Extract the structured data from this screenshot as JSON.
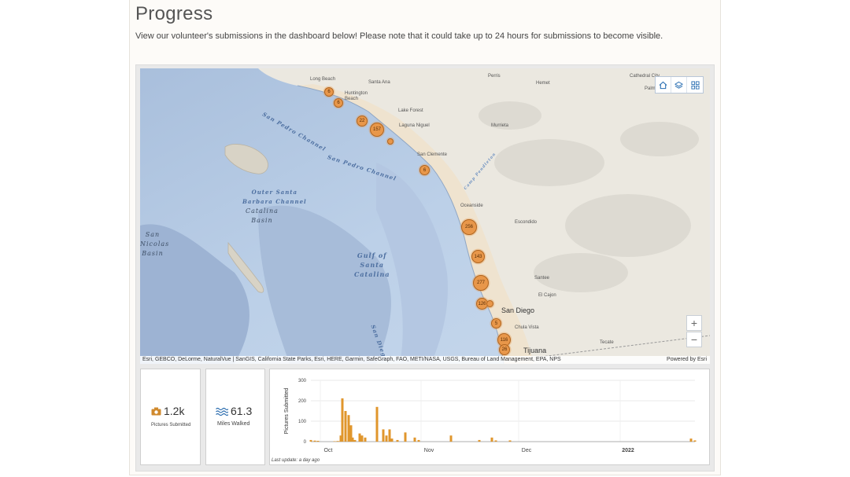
{
  "page": {
    "title": "Progress",
    "intro": "View our volunteer's submissions in the dashboard below! Please note that it could take up to 24 hours for submissions to become visible."
  },
  "map": {
    "places": [
      {
        "name": "Long Beach"
      },
      {
        "name": "Santa Ana"
      },
      {
        "name": "Perris"
      },
      {
        "name": "Hemet"
      },
      {
        "name": "Cathedral City"
      },
      {
        "name": "Palm"
      },
      {
        "name": "Huntington Beach"
      },
      {
        "name": "Lake Forest"
      },
      {
        "name": "Laguna Niguel"
      },
      {
        "name": "Murrieta"
      },
      {
        "name": "San Clemente"
      },
      {
        "name": "Oceanside"
      },
      {
        "name": "Escondido"
      },
      {
        "name": "Santee"
      },
      {
        "name": "El Cajon"
      },
      {
        "name": "Chula Vista"
      }
    ],
    "big_places": {
      "san_diego": "San Diego",
      "tijuana": "Tijuana",
      "tecate": "Tecate"
    },
    "water_labels": {
      "san_pedro_channel_1": "San Pedro Channel",
      "san_pedro_channel_2": "San Pedro Channel",
      "san_diego_trough": "San Diego Trough",
      "camp_pendleton": "Camp Pendleton",
      "outer_santa_barbara_1": "Outer Santa",
      "outer_santa_barbara_2": "Barbara Channel",
      "catalina_basin_1": "Catalina",
      "catalina_basin_2": "Basin",
      "san_nicolas_1": "San",
      "san_nicolas_2": "Nicolas",
      "san_nicolas_3": "Basin",
      "gulf_1": "Gulf of",
      "gulf_2": "Santa",
      "gulf_3": "Catalina"
    },
    "clusters": [
      {
        "label": "6"
      },
      {
        "label": "6"
      },
      {
        "label": "22"
      },
      {
        "label": "157"
      },
      {
        "label": ""
      },
      {
        "label": "6"
      },
      {
        "label": "256"
      },
      {
        "label": "143"
      },
      {
        "label": "277"
      },
      {
        "label": "126"
      },
      {
        "label": ""
      },
      {
        "label": "5"
      },
      {
        "label": "116"
      },
      {
        "label": "26"
      }
    ],
    "tools": {
      "home_icon": "home-icon",
      "layers_icon": "layers-icon",
      "basemap_icon": "basemap-gallery-icon"
    },
    "zoom": {
      "in": "+",
      "out": "−"
    },
    "attribution": "Esri, GEBCO, DeLorme, NaturalVue | SanGIS, California State Parks, Esri, HERE, Garmin, SafeGraph, FAO, METI/NASA, USGS, Bureau of Land Management, EPA, NPS",
    "powered_by": "Powered by Esri"
  },
  "kpis": {
    "pictures": {
      "value": "1.2k",
      "caption": "Pictures Submitted",
      "icon": "camera-icon",
      "color": "#d08a2e"
    },
    "miles": {
      "value": "61.3",
      "caption": "Miles Walked",
      "icon": "waves-icon",
      "color": "#2f6fb0"
    }
  },
  "chart_data": {
    "type": "bar",
    "ylabel": "Pictures Submitted",
    "xlabel": "",
    "ylim": [
      0,
      300
    ],
    "yticks": [
      0,
      100,
      200,
      300
    ],
    "xticks": [
      "Oct",
      "Nov",
      "Dec",
      "2022"
    ],
    "grid": true,
    "color": "#e0962c",
    "values": [
      8,
      5,
      4,
      2,
      3,
      2,
      30,
      212,
      150,
      130,
      80,
      20,
      8,
      40,
      30,
      20,
      170,
      60,
      30,
      60,
      15,
      8,
      45,
      20,
      8,
      30,
      8,
      20,
      6,
      6,
      15,
      6
    ]
  },
  "footer": {
    "last_update": "Last update: a day ago"
  }
}
